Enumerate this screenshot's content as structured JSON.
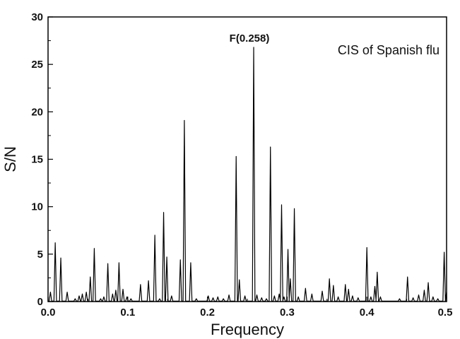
{
  "chart_data": {
    "type": "line",
    "xlabel": "Frequency",
    "ylabel": "S/N",
    "xlim": [
      0,
      0.5
    ],
    "ylim": [
      0,
      30
    ],
    "x_ticks": [
      0.0,
      0.1,
      0.2,
      0.3,
      0.4,
      0.5
    ],
    "x_tick_labels": [
      "0.0",
      "0.1",
      "0.2",
      "0.3",
      "0.4",
      "0.5"
    ],
    "y_ticks": [
      0,
      5,
      10,
      15,
      20,
      25,
      30
    ],
    "y_tick_labels": [
      "0",
      "5",
      "10",
      "15",
      "20",
      "25",
      "30"
    ],
    "annotation": {
      "text": "F(0.258)",
      "x": 0.258,
      "y": 26.8
    },
    "inset_text": "CIS of Spanish flu",
    "line_color": "#000000",
    "peaks": [
      [
        0.003,
        1.0
      ],
      [
        0.009,
        6.2
      ],
      [
        0.016,
        4.6
      ],
      [
        0.024,
        1.0
      ],
      [
        0.034,
        0.3
      ],
      [
        0.039,
        0.6
      ],
      [
        0.043,
        0.8
      ],
      [
        0.048,
        1.0
      ],
      [
        0.053,
        2.6
      ],
      [
        0.058,
        5.6
      ],
      [
        0.066,
        0.3
      ],
      [
        0.07,
        0.5
      ],
      [
        0.075,
        4.0
      ],
      [
        0.081,
        0.8
      ],
      [
        0.085,
        1.2
      ],
      [
        0.089,
        4.1
      ],
      [
        0.094,
        1.3
      ],
      [
        0.099,
        0.5
      ],
      [
        0.104,
        0.3
      ],
      [
        0.116,
        1.8
      ],
      [
        0.126,
        2.2
      ],
      [
        0.134,
        7.0
      ],
      [
        0.14,
        0.3
      ],
      [
        0.145,
        9.4
      ],
      [
        0.149,
        4.7
      ],
      [
        0.155,
        0.6
      ],
      [
        0.166,
        4.4
      ],
      [
        0.171,
        19.1
      ],
      [
        0.179,
        4.1
      ],
      [
        0.186,
        0.3
      ],
      [
        0.201,
        0.6
      ],
      [
        0.207,
        0.4
      ],
      [
        0.213,
        0.5
      ],
      [
        0.22,
        0.3
      ],
      [
        0.227,
        0.7
      ],
      [
        0.236,
        15.3
      ],
      [
        0.24,
        2.3
      ],
      [
        0.247,
        0.6
      ],
      [
        0.258,
        26.8
      ],
      [
        0.262,
        0.7
      ],
      [
        0.268,
        0.4
      ],
      [
        0.274,
        0.3
      ],
      [
        0.279,
        16.3
      ],
      [
        0.284,
        0.6
      ],
      [
        0.29,
        0.8
      ],
      [
        0.293,
        10.2
      ],
      [
        0.296,
        0.5
      ],
      [
        0.301,
        5.5
      ],
      [
        0.304,
        2.4
      ],
      [
        0.309,
        9.8
      ],
      [
        0.314,
        0.5
      ],
      [
        0.323,
        1.4
      ],
      [
        0.331,
        0.8
      ],
      [
        0.344,
        1.1
      ],
      [
        0.353,
        2.4
      ],
      [
        0.358,
        1.7
      ],
      [
        0.364,
        0.5
      ],
      [
        0.373,
        1.8
      ],
      [
        0.377,
        1.3
      ],
      [
        0.382,
        0.6
      ],
      [
        0.389,
        0.4
      ],
      [
        0.4,
        5.7
      ],
      [
        0.405,
        0.5
      ],
      [
        0.41,
        1.6
      ],
      [
        0.413,
        3.1
      ],
      [
        0.417,
        0.5
      ],
      [
        0.441,
        0.3
      ],
      [
        0.451,
        2.6
      ],
      [
        0.458,
        0.4
      ],
      [
        0.465,
        0.7
      ],
      [
        0.472,
        1.2
      ],
      [
        0.477,
        2.0
      ],
      [
        0.483,
        0.5
      ],
      [
        0.489,
        0.3
      ],
      [
        0.497,
        5.2
      ],
      [
        0.5,
        1.0
      ]
    ]
  }
}
